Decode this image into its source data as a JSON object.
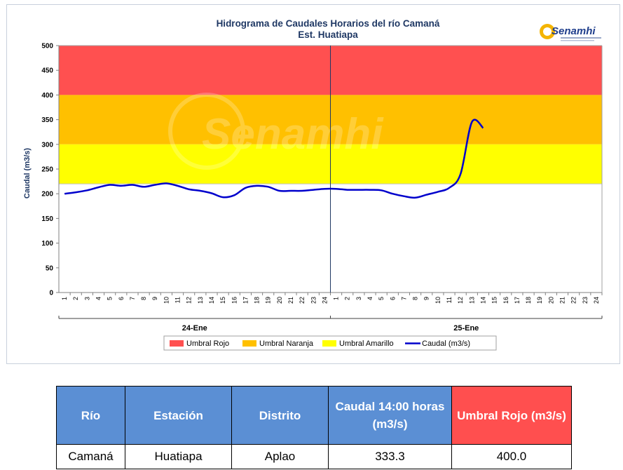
{
  "colors": {
    "umbral_rojo": "#ff5050",
    "umbral_naranja": "#ffc000",
    "umbral_amarillo": "#ffff00",
    "caudal": "#0000cc",
    "title": "#1f3864",
    "table_header_blue": "#5b8fd4",
    "table_header_red": "#ff4f4f"
  },
  "logo": {
    "text": "Senamhi",
    "icon": "sun-icon"
  },
  "watermark": {
    "text": "Senamhi",
    "icon": "sun-watermark-icon"
  },
  "chart_data": {
    "type": "line",
    "title": "Hidrograma de Caudales Horarios del río Camaná",
    "subtitle": "Est. Huatiapa",
    "ylabel": "Caudal  (m3/s)",
    "ylim": [
      0,
      500
    ],
    "yticks": [
      0,
      50,
      100,
      150,
      200,
      250,
      300,
      350,
      400,
      450,
      500
    ],
    "days": [
      "24-Ene",
      "25-Ene"
    ],
    "hour_labels": [
      "1",
      "2",
      "3",
      "4",
      "5",
      "6",
      "7",
      "8",
      "9",
      "10",
      "11",
      "12",
      "13",
      "14",
      "15",
      "16",
      "17",
      "18",
      "19",
      "20",
      "21",
      "22",
      "23",
      "24"
    ],
    "bands": [
      {
        "name": "Umbral Rojo",
        "from": 400,
        "to": 500,
        "color": "#ff5050"
      },
      {
        "name": "Umbral Naranja",
        "from": 300,
        "to": 400,
        "color": "#ffc000"
      },
      {
        "name": "Umbral Amarillo",
        "from": 220,
        "to": 300,
        "color": "#ffff00"
      }
    ],
    "series": [
      {
        "name": "Caudal (m3/s)",
        "color": "#0000cc",
        "x": [
          1,
          2,
          3,
          4,
          5,
          6,
          7,
          8,
          9,
          10,
          11,
          12,
          13,
          14,
          15,
          16,
          17,
          18,
          19,
          20,
          21,
          22,
          23,
          24,
          25,
          26,
          27,
          28,
          29,
          30,
          31,
          32,
          33,
          34,
          35,
          36,
          37,
          38
        ],
        "values": [
          200,
          203,
          207,
          213,
          218,
          216,
          218,
          214,
          218,
          221,
          216,
          209,
          206,
          201,
          193,
          197,
          212,
          216,
          214,
          206,
          206,
          206,
          208,
          210,
          210,
          208,
          208,
          208,
          207,
          200,
          195,
          192,
          198,
          204,
          212,
          240,
          345,
          333.3
        ]
      }
    ],
    "legend": [
      "Umbral Rojo",
      "Umbral Naranja",
      "Umbral Amarillo",
      "Caudal (m3/s)"
    ],
    "legend_position": "bottom",
    "grid": false
  },
  "table": {
    "headers": [
      "Río",
      "Estación",
      "Distrito",
      "Caudal 14:00 horas (m3/s)",
      "Umbral  Rojo (m3/s)"
    ],
    "row": [
      "Camaná",
      "Huatiapa",
      "Aplao",
      "333.3",
      "400.0"
    ]
  }
}
